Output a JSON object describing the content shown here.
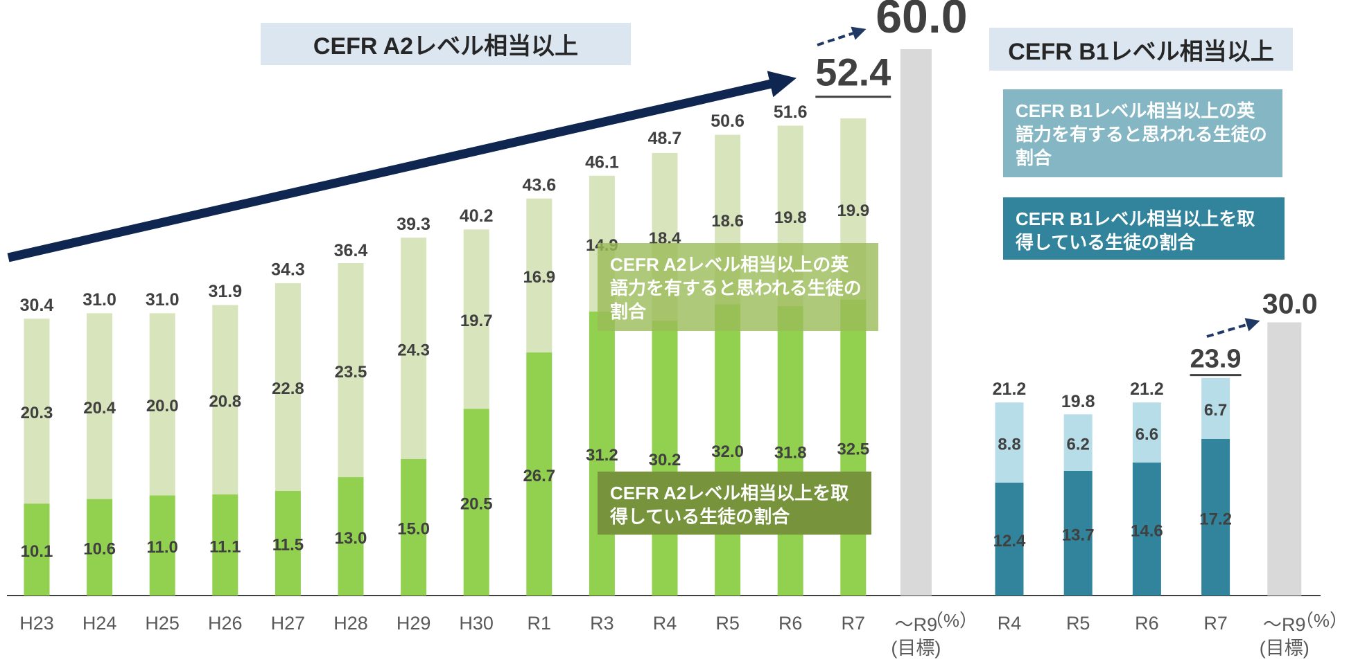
{
  "chart_data": [
    {
      "type": "bar",
      "stacked": true,
      "title": "CEFR A2レベル相当以上",
      "categories": [
        "H23",
        "H24",
        "H25",
        "H26",
        "H27",
        "H28",
        "H29",
        "H30",
        "R1",
        "R3",
        "R4",
        "R5",
        "R6",
        "R7"
      ],
      "series": [
        {
          "name": "CEFR A2レベル相当以上を取得している生徒の割合",
          "color": "#92d050",
          "values": [
            10.1,
            10.6,
            11.0,
            11.1,
            11.5,
            13.0,
            15.0,
            20.5,
            26.7,
            31.2,
            30.2,
            32.0,
            31.8,
            32.5
          ],
          "value_labels": [
            "10.1",
            "10.6",
            "11.0",
            "11.1",
            "11.5",
            "13.0",
            "15.0",
            "20.5",
            "26.7",
            "31.2",
            "30.2",
            "32.0",
            "31.8",
            "32.5"
          ]
        },
        {
          "name": "CEFR A2レベル相当以上の英語力を有すると思われる生徒の割合",
          "color": "#d8e4bc",
          "values": [
            20.3,
            20.4,
            20.0,
            20.8,
            22.8,
            23.5,
            24.3,
            19.7,
            16.9,
            14.9,
            18.4,
            18.6,
            19.8,
            19.9
          ],
          "value_labels": [
            "20.3",
            "20.4",
            "20.0",
            "20.8",
            "22.8",
            "23.5",
            "24.3",
            "19.7",
            "16.9",
            "14.9",
            "18.4",
            "18.6",
            "19.8",
            "19.9"
          ]
        }
      ],
      "totals": [
        30.4,
        31.0,
        31.0,
        31.9,
        34.3,
        36.4,
        39.3,
        40.2,
        43.6,
        46.1,
        48.7,
        50.6,
        51.6,
        52.4
      ],
      "total_labels": [
        "30.4",
        "31.0",
        "31.0",
        "31.9",
        "34.3",
        "36.4",
        "39.3",
        "40.2",
        "43.6",
        "46.1",
        "48.7",
        "50.6",
        "51.6",
        "52.4"
      ],
      "target": {
        "category": "～R9\n(目標)",
        "value": 60,
        "label": "60.0",
        "color": "#d9d9d9"
      },
      "unit": "（%）",
      "ylim": [
        0,
        60
      ]
    },
    {
      "type": "bar",
      "stacked": true,
      "title": "CEFR B1レベル相当以上",
      "categories": [
        "R4",
        "R5",
        "R6",
        "R7"
      ],
      "series": [
        {
          "name": "CEFR B1レベル相当以上を取得している生徒の割合",
          "color": "#31849b",
          "values": [
            12.4,
            13.7,
            14.6,
            17.2
          ],
          "value_labels": [
            "12.4",
            "13.7",
            "14.6",
            "17.2"
          ]
        },
        {
          "name": "CEFR B1レベル相当以上の英語力を有すると思われる生徒の割合",
          "color": "#b7dee8",
          "values": [
            8.8,
            6.2,
            6.6,
            6.7
          ],
          "value_labels": [
            "8.8",
            "6.2",
            "6.6",
            "6.7"
          ]
        }
      ],
      "totals": [
        21.2,
        19.8,
        21.2,
        23.9
      ],
      "total_labels": [
        "21.2",
        "19.8",
        "21.2",
        "23.9"
      ],
      "target": {
        "category": "～R9\n(目標)",
        "value": 30,
        "label": "30.0",
        "color": "#d9d9d9"
      },
      "unit": "（%）",
      "ylim": [
        0,
        60
      ]
    }
  ]
}
